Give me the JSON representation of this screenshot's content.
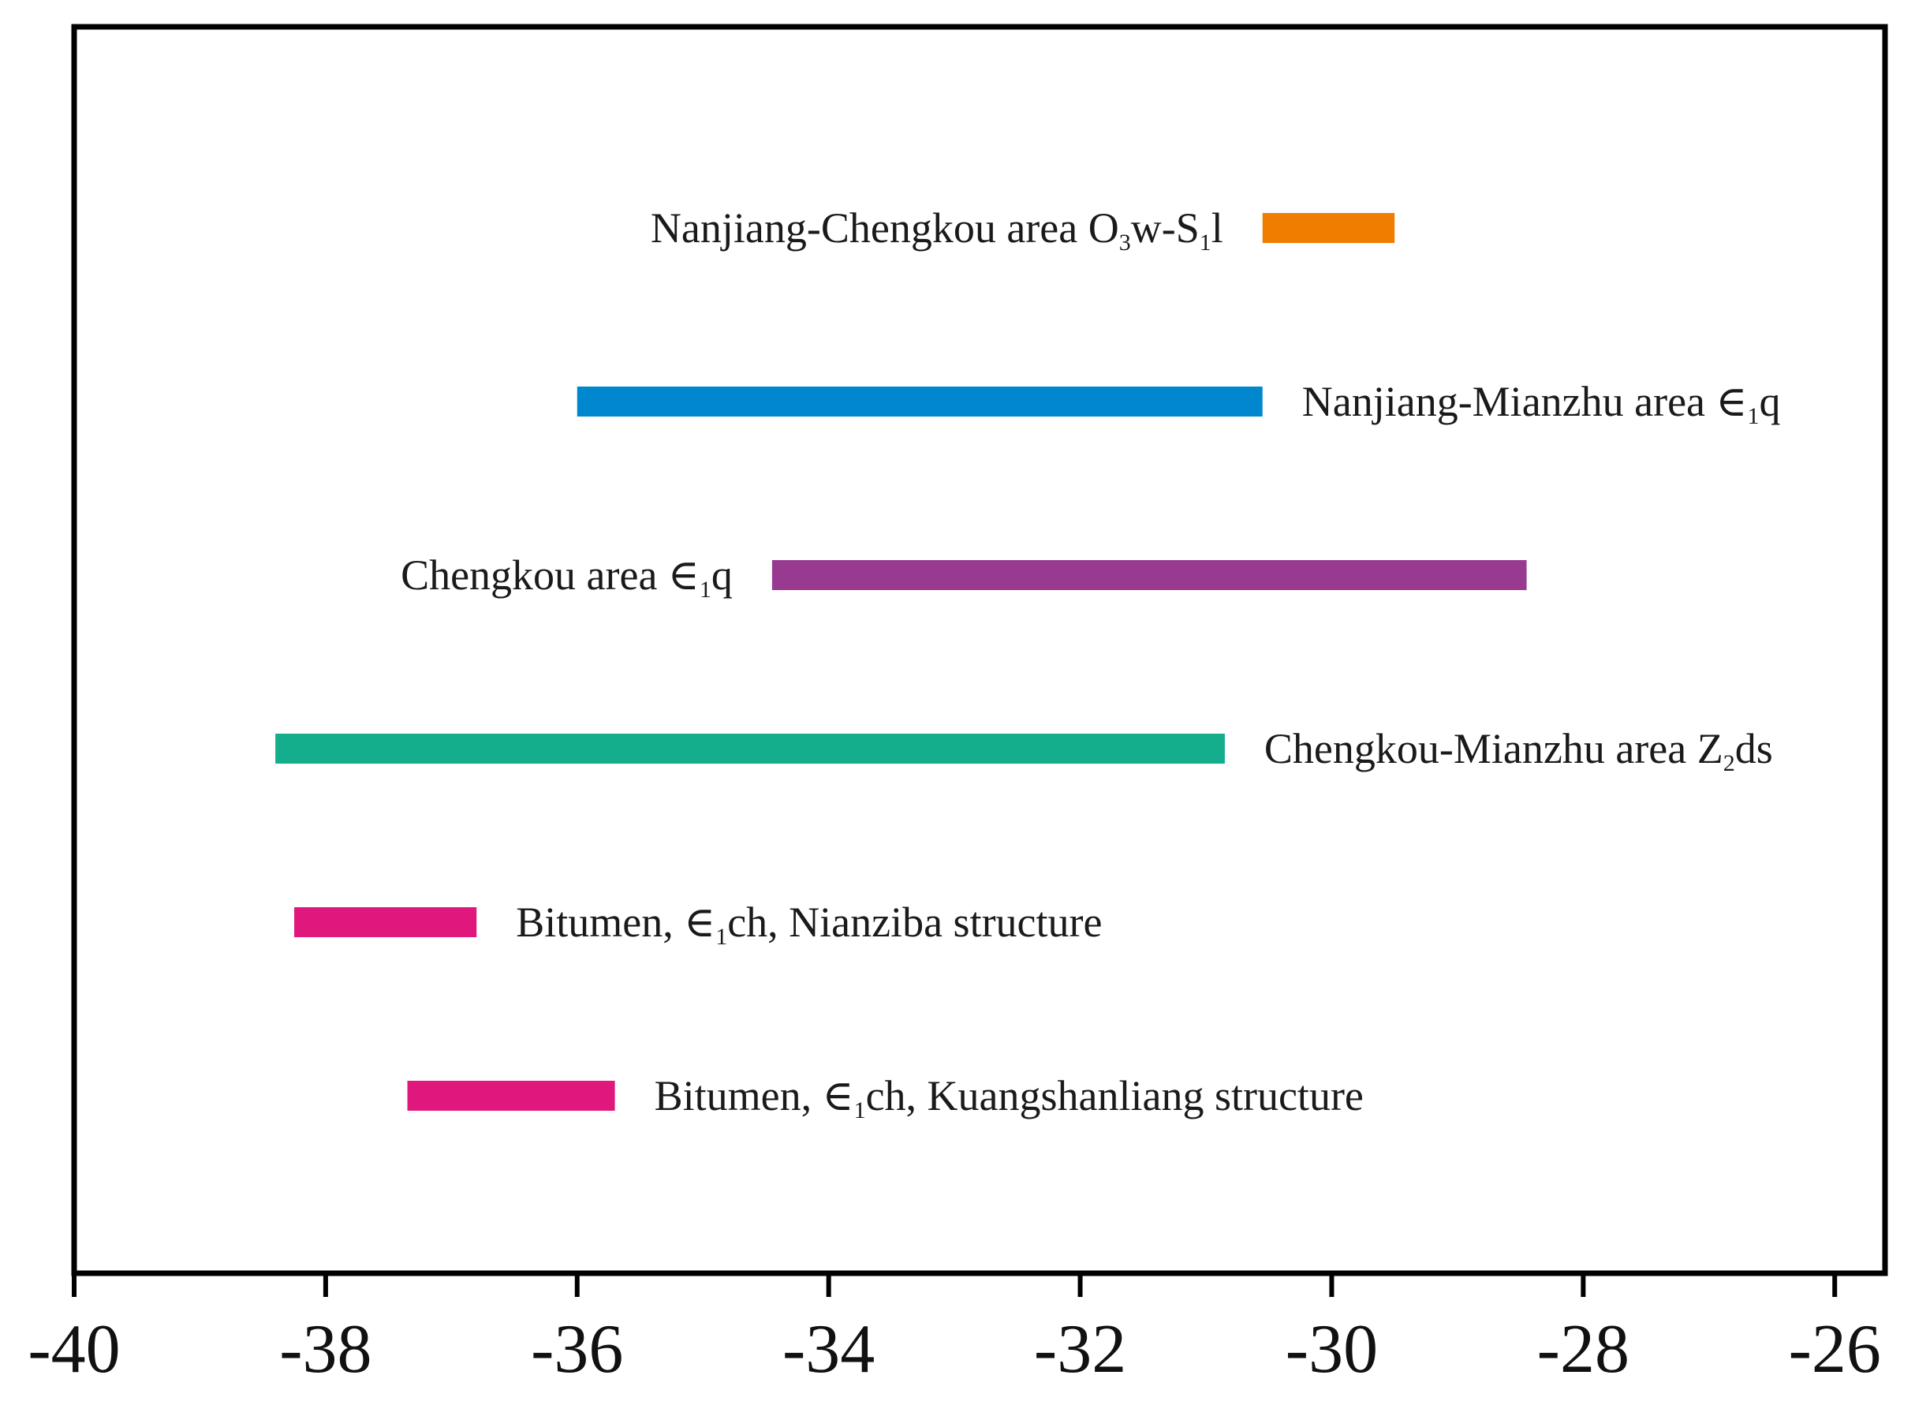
{
  "chart_data": {
    "type": "bar",
    "title": "",
    "xlabel": "",
    "ylabel": "",
    "xlim": [
      -40,
      -25.6
    ],
    "xticks": [
      -40,
      -38,
      -36,
      -34,
      -32,
      -30,
      -28,
      -26
    ],
    "series": [
      {
        "label_parts": [
          [
            "Nanjiang-Chengkou area O",
            ""
          ],
          [
            "3",
            "sub"
          ],
          [
            "w-S",
            ""
          ],
          [
            "1",
            "sub"
          ],
          [
            "l",
            ""
          ]
        ],
        "min": -30.55,
        "max": -29.5,
        "color": "#ee7d00",
        "label_side": "left"
      },
      {
        "label_parts": [
          [
            "Nanjiang-Mianzhu area  ∈",
            ""
          ],
          [
            "1",
            "sub"
          ],
          [
            "q",
            ""
          ]
        ],
        "min": -36.0,
        "max": -30.55,
        "color": "#0087cd",
        "label_side": "right"
      },
      {
        "label_parts": [
          [
            "Chengkou area  ∈",
            ""
          ],
          [
            "1",
            "sub"
          ],
          [
            "q",
            ""
          ]
        ],
        "min": -34.45,
        "max": -28.45,
        "color": "#983a8f",
        "label_side": "left"
      },
      {
        "label_parts": [
          [
            "Chengkou-Mianzhu area  Z",
            ""
          ],
          [
            "2",
            "sub"
          ],
          [
            "ds",
            ""
          ]
        ],
        "min": -38.4,
        "max": -30.85,
        "color": "#14ae8c",
        "label_side": "right"
      },
      {
        "label_parts": [
          [
            "Bitumen,   ∈",
            ""
          ],
          [
            "1",
            "sub"
          ],
          [
            "ch, Nianziba structure",
            ""
          ]
        ],
        "min": -38.25,
        "max": -36.8,
        "color": "#e0187e",
        "label_side": "right"
      },
      {
        "label_parts": [
          [
            "Bitumen, ∈",
            ""
          ],
          [
            "1",
            "sub"
          ],
          [
            "ch, Kuangshanliang structure",
            ""
          ]
        ],
        "min": -37.35,
        "max": -35.7,
        "color": "#e0187e",
        "label_side": "right"
      }
    ]
  }
}
